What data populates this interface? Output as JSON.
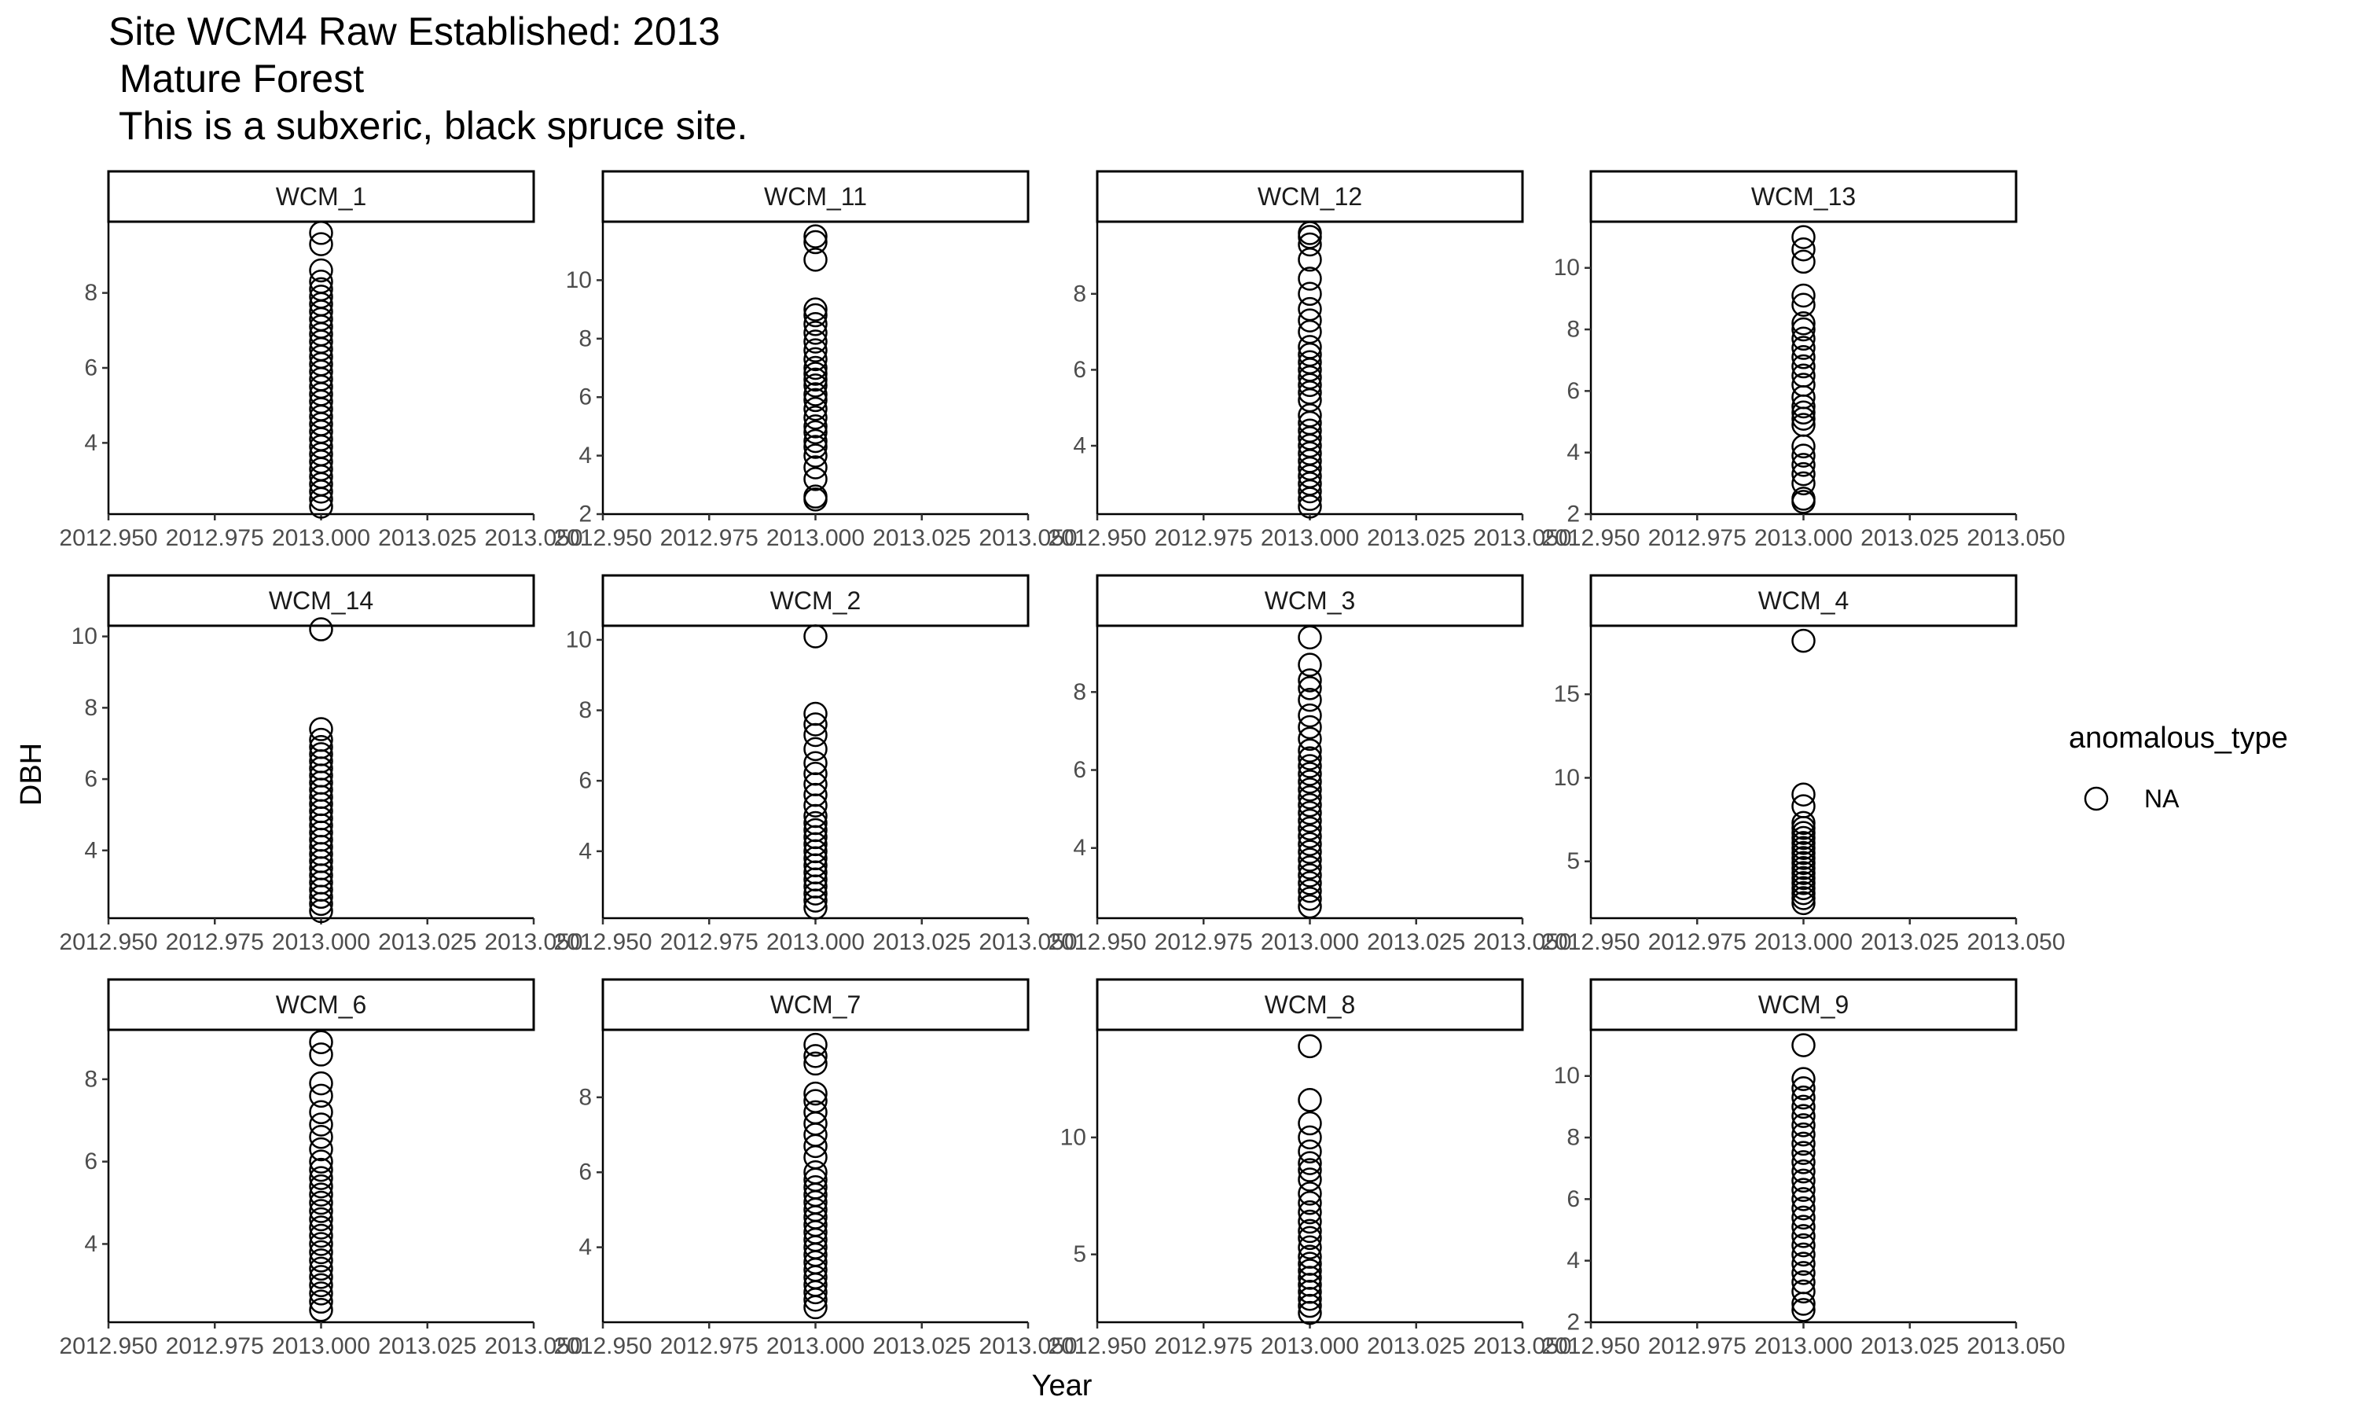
{
  "chart_data": {
    "type": "scatter",
    "title": [
      "Site WCM4 Raw Established: 2013",
      " Mature Forest",
      " This is a subxeric, black spruce site."
    ],
    "xlabel": "Year",
    "ylabel": "DBH",
    "xlim": [
      2012.95,
      2013.05
    ],
    "x_ticks": [
      2012.95,
      2012.975,
      2013.0,
      2013.025,
      2013.05
    ],
    "x_tick_labels": [
      "2012.950",
      "2012.975",
      "2013.000",
      "2013.025",
      "2013.050"
    ],
    "grid": false,
    "legend": {
      "title": "anomalous_type",
      "entries": [
        "NA"
      ],
      "position": "right"
    },
    "panels": [
      {
        "name": "WCM_1",
        "ylim": [
          2.1,
          9.9
        ],
        "y_ticks": [
          4,
          6,
          8
        ],
        "x": 2013.0,
        "values": [
          2.3,
          2.5,
          2.7,
          2.9,
          3.1,
          3.3,
          3.5,
          3.7,
          3.9,
          4.1,
          4.3,
          4.5,
          4.7,
          4.9,
          5.1,
          5.3,
          5.5,
          5.7,
          5.9,
          6.1,
          6.3,
          6.5,
          6.7,
          6.9,
          7.1,
          7.3,
          7.5,
          7.7,
          7.9,
          8.1,
          8.3,
          8.6,
          9.3,
          9.6
        ]
      },
      {
        "name": "WCM_11",
        "ylim": [
          2,
          12
        ],
        "y_ticks": [
          2,
          4,
          6,
          8,
          10
        ],
        "x": 2013.0,
        "values": [
          2.5,
          2.6,
          3.2,
          3.6,
          4.0,
          4.3,
          4.5,
          4.8,
          5.0,
          5.3,
          5.6,
          5.9,
          6.1,
          6.4,
          6.6,
          6.8,
          7.0,
          7.3,
          7.6,
          7.9,
          8.2,
          8.5,
          8.8,
          9.0,
          10.7,
          11.3,
          11.5
        ]
      },
      {
        "name": "WCM_12",
        "ylim": [
          2.2,
          9.9
        ],
        "y_ticks": [
          4,
          6,
          8
        ],
        "x": 2013.0,
        "values": [
          2.4,
          2.6,
          2.8,
          3.0,
          3.2,
          3.4,
          3.6,
          3.8,
          4.0,
          4.2,
          4.4,
          4.6,
          4.8,
          5.2,
          5.4,
          5.6,
          5.8,
          6.0,
          6.2,
          6.4,
          6.6,
          7.0,
          7.3,
          7.6,
          8.0,
          8.4,
          8.9,
          9.3,
          9.5,
          9.6
        ]
      },
      {
        "name": "WCM_13",
        "ylim": [
          2,
          11.5
        ],
        "y_ticks": [
          2,
          4,
          6,
          8,
          10
        ],
        "x": 2013.0,
        "values": [
          2.4,
          2.5,
          3.0,
          3.3,
          3.6,
          3.9,
          4.2,
          4.9,
          5.1,
          5.3,
          5.5,
          5.8,
          6.2,
          6.5,
          6.8,
          7.1,
          7.4,
          7.7,
          8.0,
          8.2,
          8.8,
          9.1,
          10.2,
          10.6,
          11.0
        ]
      },
      {
        "name": "WCM_14",
        "ylim": [
          2.1,
          10.3
        ],
        "y_ticks": [
          4,
          6,
          8,
          10
        ],
        "x": 2013.0,
        "values": [
          2.3,
          2.5,
          2.7,
          2.9,
          3.1,
          3.3,
          3.5,
          3.7,
          3.9,
          4.1,
          4.3,
          4.5,
          4.7,
          4.9,
          5.1,
          5.3,
          5.5,
          5.7,
          5.9,
          6.1,
          6.3,
          6.5,
          6.7,
          6.9,
          7.1,
          7.4,
          10.2
        ]
      },
      {
        "name": "WCM_2",
        "ylim": [
          2.1,
          10.4
        ],
        "y_ticks": [
          4,
          6,
          8,
          10
        ],
        "x": 2013.0,
        "values": [
          2.4,
          2.6,
          2.8,
          3.0,
          3.2,
          3.4,
          3.6,
          3.8,
          4.0,
          4.2,
          4.4,
          4.6,
          4.8,
          5.0,
          5.3,
          5.6,
          5.9,
          6.2,
          6.5,
          6.9,
          7.3,
          7.6,
          7.9,
          10.1
        ]
      },
      {
        "name": "WCM_3",
        "ylim": [
          2.2,
          9.7
        ],
        "y_ticks": [
          4,
          6,
          8
        ],
        "x": 2013.0,
        "values": [
          2.5,
          2.7,
          2.9,
          3.1,
          3.3,
          3.5,
          3.7,
          3.9,
          4.1,
          4.3,
          4.5,
          4.7,
          4.9,
          5.1,
          5.3,
          5.5,
          5.7,
          5.9,
          6.1,
          6.3,
          6.5,
          6.8,
          7.1,
          7.4,
          7.8,
          8.1,
          8.3,
          8.7,
          9.4
        ]
      },
      {
        "name": "WCM_4",
        "ylim": [
          1.6,
          19.1
        ],
        "y_ticks": [
          5,
          10,
          15
        ],
        "x": 2013.0,
        "values": [
          2.5,
          2.8,
          3.1,
          3.4,
          3.7,
          4.0,
          4.3,
          4.6,
          4.9,
          5.2,
          5.5,
          5.8,
          6.1,
          6.4,
          6.7,
          7.0,
          7.3,
          8.3,
          9.0,
          18.2
        ]
      },
      {
        "name": "WCM_6",
        "ylim": [
          2.1,
          9.2
        ],
        "y_ticks": [
          4,
          6,
          8
        ],
        "x": 2013.0,
        "values": [
          2.4,
          2.6,
          2.8,
          3.0,
          3.2,
          3.4,
          3.6,
          3.8,
          4.0,
          4.2,
          4.4,
          4.6,
          4.8,
          5.0,
          5.2,
          5.4,
          5.6,
          5.8,
          6.0,
          6.3,
          6.6,
          6.9,
          7.2,
          7.6,
          7.9,
          8.6,
          8.9
        ]
      },
      {
        "name": "WCM_7",
        "ylim": [
          2.0,
          9.8
        ],
        "y_ticks": [
          4,
          6,
          8
        ],
        "x": 2013.0,
        "values": [
          2.4,
          2.6,
          2.8,
          3.0,
          3.2,
          3.4,
          3.6,
          3.8,
          4.0,
          4.2,
          4.4,
          4.6,
          4.8,
          5.0,
          5.2,
          5.4,
          5.6,
          5.8,
          6.0,
          6.4,
          6.7,
          7.0,
          7.3,
          7.6,
          7.9,
          8.1,
          8.9,
          9.1,
          9.4
        ]
      },
      {
        "name": "WCM_8",
        "ylim": [
          2.1,
          14.6
        ],
        "y_ticks": [
          5,
          10
        ],
        "x": 2013.0,
        "values": [
          2.5,
          2.8,
          3.1,
          3.4,
          3.7,
          4.0,
          4.3,
          4.6,
          4.9,
          5.3,
          5.7,
          6.0,
          6.4,
          6.8,
          7.2,
          7.6,
          8.2,
          8.6,
          8.9,
          9.4,
          10.0,
          10.6,
          11.6,
          13.9
        ]
      },
      {
        "name": "WCM_9",
        "ylim": [
          2,
          11.5
        ],
        "y_ticks": [
          2,
          4,
          6,
          8,
          10
        ],
        "x": 2013.0,
        "values": [
          2.4,
          2.6,
          3.0,
          3.3,
          3.6,
          3.9,
          4.2,
          4.5,
          4.8,
          5.1,
          5.4,
          5.7,
          6.0,
          6.3,
          6.6,
          6.9,
          7.2,
          7.5,
          7.8,
          8.1,
          8.4,
          8.7,
          9.0,
          9.3,
          9.6,
          9.9,
          11.0
        ]
      }
    ]
  }
}
